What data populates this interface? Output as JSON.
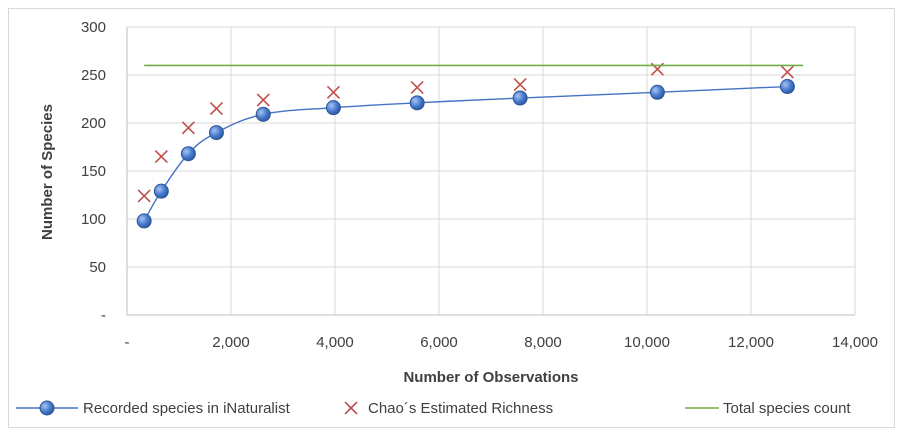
{
  "chart_data": {
    "type": "scatter",
    "title": "",
    "xlabel": "Number of Observations",
    "ylabel": "Number of Species",
    "xlim": [
      0,
      14000
    ],
    "ylim": [
      0,
      300
    ],
    "x_ticks": [
      0,
      2000,
      4000,
      6000,
      8000,
      10000,
      12000,
      14000
    ],
    "x_tick_labels": [
      "-",
      "2,000",
      "4,000",
      "6,000",
      "8,000",
      "10,000",
      "12,000",
      "14,000"
    ],
    "y_ticks": [
      0,
      50,
      100,
      150,
      200,
      250,
      300
    ],
    "y_tick_labels": [
      "-",
      "50",
      "100",
      "150",
      "200",
      "250",
      "300"
    ],
    "grid": true,
    "legend_position": "bottom",
    "series": [
      {
        "name": "Recorded species in iNaturalist",
        "kind": "line-markers",
        "color": "#4472c4",
        "x": [
          330,
          660,
          1180,
          1720,
          2620,
          3970,
          5580,
          7560,
          10200,
          12700
        ],
        "y": [
          98,
          129,
          168,
          190,
          209,
          216,
          221,
          226,
          232,
          238
        ]
      },
      {
        "name": "Chao´s Estimated Richness",
        "kind": "x-markers",
        "color": "#c0504d",
        "x": [
          330,
          660,
          1180,
          1720,
          2620,
          3970,
          5580,
          7560,
          10200,
          12700
        ],
        "y": [
          124,
          165,
          195,
          215,
          224,
          232,
          237,
          240,
          256,
          253
        ]
      },
      {
        "name": "Total species count",
        "kind": "line",
        "color": "#70ad47",
        "x": [
          330,
          13000
        ],
        "y": [
          260,
          260
        ]
      }
    ]
  }
}
